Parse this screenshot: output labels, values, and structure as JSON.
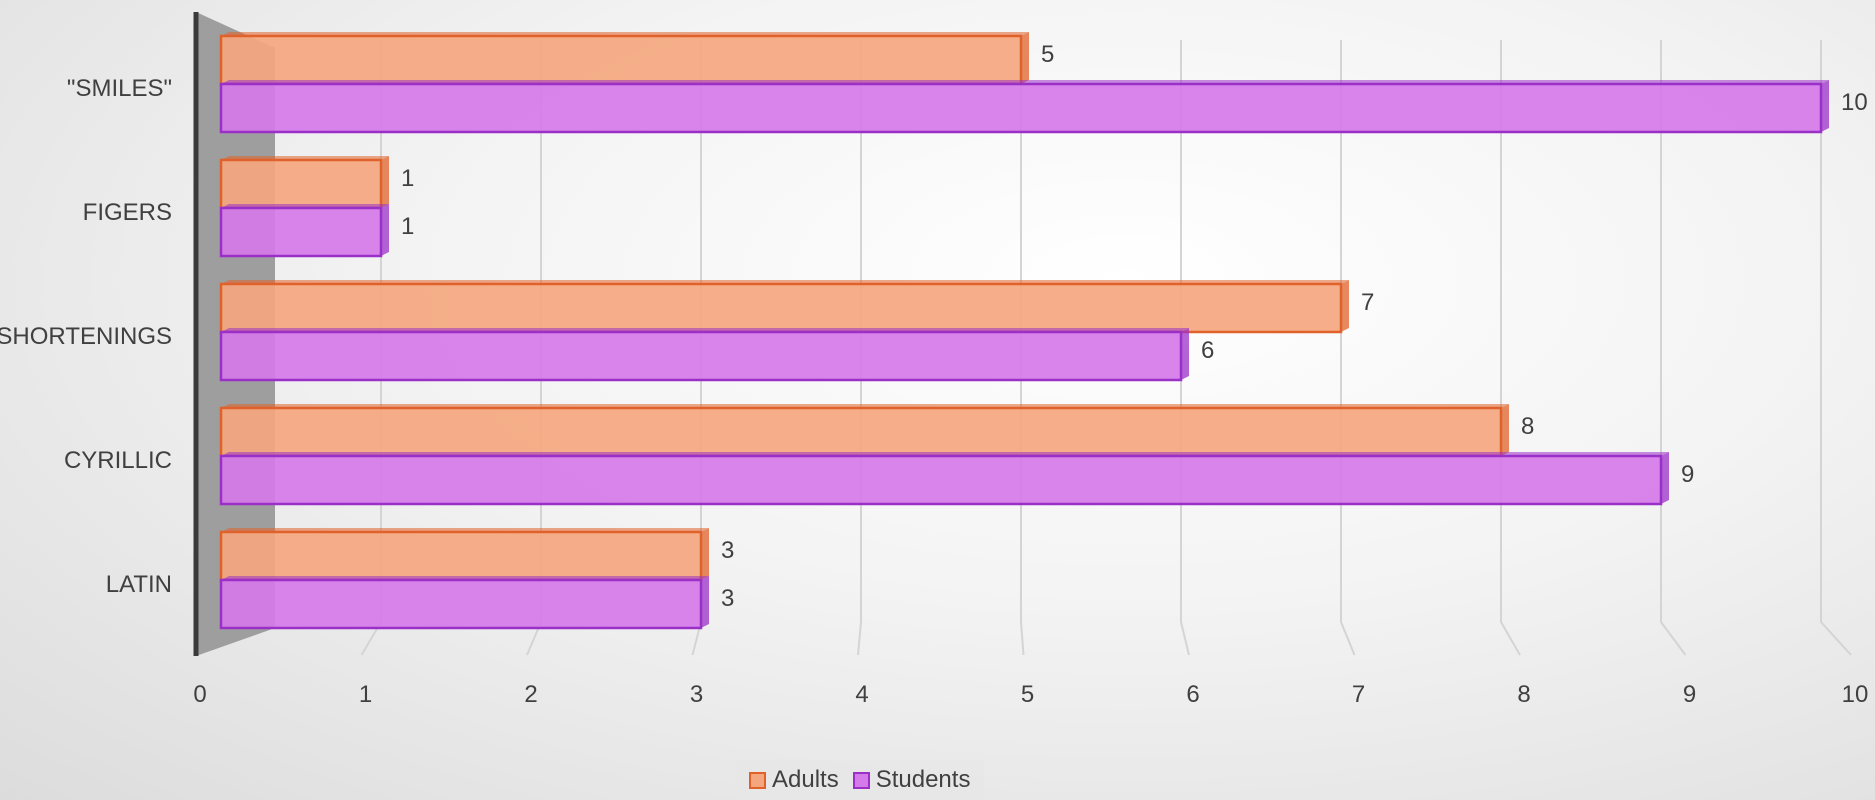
{
  "chart_data": {
    "type": "bar",
    "orientation": "horizontal",
    "three_d": true,
    "categories": [
      "\"SMILES\"",
      "FIGERS",
      "SHORTENINGS",
      "CYRILLIC",
      "LATIN"
    ],
    "series": [
      {
        "name": "Adults",
        "values": [
          5,
          1,
          7,
          8,
          3
        ],
        "color": "#f4a77f",
        "edge_color": "#e0622a"
      },
      {
        "name": "Students",
        "values": [
          10,
          1,
          6,
          9,
          3
        ],
        "color": "#d57ae9",
        "edge_color": "#9b30c9"
      }
    ],
    "x_ticks": [
      "0",
      "1",
      "2",
      "3",
      "4",
      "5",
      "6",
      "7",
      "8",
      "9",
      "10"
    ],
    "xlim": [
      0,
      10
    ],
    "title": "",
    "xlabel": "",
    "ylabel": "",
    "grid": true,
    "legend_position": "bottom",
    "data_labels": true
  }
}
